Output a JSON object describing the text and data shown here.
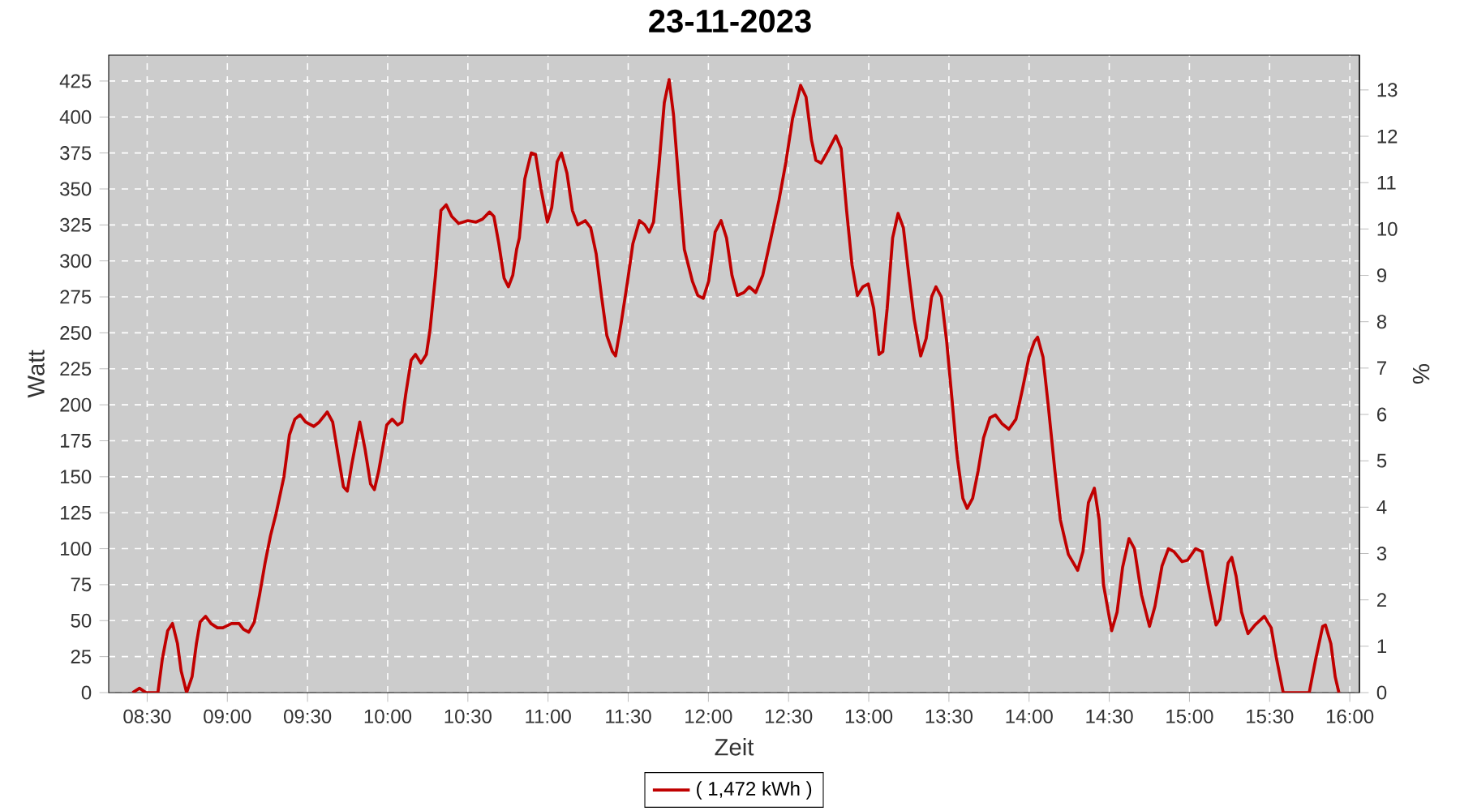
{
  "chart_data": {
    "type": "line",
    "title": "23-11-2023",
    "xlabel": "Zeit",
    "ylabel": "Watt",
    "y2label": "%",
    "xlim": [
      8.26,
      16.06
    ],
    "ylim": [
      0,
      443
    ],
    "y2lim": [
      0,
      13.75
    ],
    "xticks": [
      {
        "value": 8.5,
        "label": "08:30"
      },
      {
        "value": 9.0,
        "label": "09:00"
      },
      {
        "value": 9.5,
        "label": "09:30"
      },
      {
        "value": 10.0,
        "label": "10:00"
      },
      {
        "value": 10.5,
        "label": "10:30"
      },
      {
        "value": 11.0,
        "label": "11:00"
      },
      {
        "value": 11.5,
        "label": "11:30"
      },
      {
        "value": 12.0,
        "label": "12:00"
      },
      {
        "value": 12.5,
        "label": "12:30"
      },
      {
        "value": 13.0,
        "label": "13:00"
      },
      {
        "value": 13.5,
        "label": "13:30"
      },
      {
        "value": 14.0,
        "label": "14:00"
      },
      {
        "value": 14.5,
        "label": "14:30"
      },
      {
        "value": 15.0,
        "label": "15:00"
      },
      {
        "value": 15.5,
        "label": "15:30"
      },
      {
        "value": 16.0,
        "label": "16:00"
      }
    ],
    "yticks": [
      0,
      25,
      50,
      75,
      100,
      125,
      150,
      175,
      200,
      225,
      250,
      275,
      300,
      325,
      350,
      375,
      400,
      425
    ],
    "y2ticks": [
      0,
      1,
      2,
      3,
      4,
      5,
      6,
      7,
      8,
      9,
      10,
      11,
      12,
      13
    ],
    "grid": true,
    "legend": "bottom",
    "marker": "none",
    "line_style": "solid",
    "series": [
      {
        "name": "( 1,472 kWh )",
        "color": "#c00000",
        "x": [
          8.409,
          8.452,
          8.493,
          8.567,
          8.594,
          8.628,
          8.658,
          8.689,
          8.712,
          8.746,
          8.78,
          8.807,
          8.83,
          8.864,
          8.898,
          8.938,
          8.972,
          9.026,
          9.073,
          9.1,
          9.134,
          9.168,
          9.201,
          9.235,
          9.269,
          9.303,
          9.353,
          9.387,
          9.421,
          9.454,
          9.488,
          9.539,
          9.573,
          9.623,
          9.657,
          9.691,
          9.724,
          9.748,
          9.775,
          9.826,
          9.859,
          9.893,
          9.917,
          9.944,
          9.994,
          10.028,
          10.062,
          10.089,
          10.112,
          10.146,
          10.173,
          10.207,
          10.241,
          10.264,
          10.298,
          10.332,
          10.365,
          10.399,
          10.443,
          10.5,
          10.551,
          10.591,
          10.635,
          10.662,
          10.693,
          10.726,
          10.753,
          10.78,
          10.804,
          10.821,
          10.855,
          10.895,
          10.922,
          10.956,
          10.996,
          11.023,
          11.057,
          11.084,
          11.118,
          11.152,
          11.185,
          11.232,
          11.266,
          11.3,
          11.334,
          11.367,
          11.401,
          11.421,
          11.455,
          11.496,
          11.529,
          11.57,
          11.604,
          11.631,
          11.658,
          11.691,
          11.725,
          11.755,
          11.782,
          11.816,
          11.85,
          11.9,
          11.934,
          11.968,
          12.002,
          12.042,
          12.079,
          12.113,
          12.147,
          12.18,
          12.221,
          12.255,
          12.295,
          12.339,
          12.39,
          12.44,
          12.484,
          12.525,
          12.575,
          12.609,
          12.643,
          12.67,
          12.703,
          12.744,
          12.795,
          12.828,
          12.862,
          12.896,
          12.929,
          12.963,
          12.997,
          13.031,
          13.064,
          13.088,
          13.115,
          13.149,
          13.183,
          13.216,
          13.25,
          13.284,
          13.324,
          13.358,
          13.392,
          13.419,
          13.453,
          13.486,
          13.52,
          13.547,
          13.554,
          13.587,
          13.614,
          13.648,
          13.682,
          13.716,
          13.756,
          13.79,
          13.83,
          13.874,
          13.918,
          13.959,
          13.999,
          14.033,
          14.053,
          14.087,
          14.12,
          14.161,
          14.195,
          14.245,
          14.303,
          14.336,
          14.37,
          14.407,
          14.437,
          14.464,
          14.515,
          14.549,
          14.583,
          14.623,
          14.657,
          14.701,
          14.751,
          14.785,
          14.829,
          14.869,
          14.903,
          14.954,
          14.988,
          15.038,
          15.079,
          15.123,
          15.166,
          15.19,
          15.241,
          15.264,
          15.291,
          15.325,
          15.365,
          15.409,
          15.467,
          15.51,
          15.544,
          15.585,
          15.747,
          15.787,
          15.831,
          15.848,
          15.882,
          15.909,
          15.932
        ],
        "values": [
          0,
          3,
          0,
          0,
          23,
          43,
          48,
          34,
          15,
          0,
          11,
          34,
          49,
          53,
          48,
          45,
          45,
          48,
          48,
          44,
          42,
          49,
          68,
          90,
          109,
          124,
          150,
          179,
          190,
          193,
          188,
          185,
          188,
          195,
          188,
          165,
          143,
          140,
          158,
          188,
          169,
          145,
          141,
          154,
          186,
          190,
          186,
          188,
          207,
          231,
          235,
          229,
          235,
          252,
          290,
          335,
          339,
          331,
          326,
          328,
          327,
          329,
          334,
          331,
          312,
          288,
          282,
          290,
          308,
          316,
          357,
          375,
          374,
          350,
          327,
          337,
          369,
          375,
          361,
          335,
          325,
          328,
          323,
          305,
          275,
          248,
          237,
          234,
          256,
          286,
          312,
          328,
          325,
          320,
          327,
          365,
          410,
          426,
          402,
          354,
          308,
          286,
          276,
          274,
          286,
          320,
          328,
          316,
          290,
          276,
          278,
          282,
          278,
          290,
          316,
          342,
          369,
          399,
          422,
          414,
          384,
          370,
          368,
          376,
          387,
          378,
          335,
          297,
          276,
          282,
          284,
          267,
          235,
          237,
          267,
          316,
          333,
          323,
          290,
          259,
          234,
          246,
          275,
          282,
          275,
          244,
          203,
          169,
          162,
          135,
          128,
          135,
          154,
          177,
          191,
          193,
          187,
          183,
          190,
          211,
          233,
          244,
          247,
          233,
          199,
          154,
          120,
          96,
          85,
          98,
          132,
          142,
          120,
          75,
          43,
          56,
          87,
          107,
          100,
          68,
          46,
          60,
          88,
          100,
          98,
          91,
          92,
          100,
          98,
          71,
          47,
          51,
          90,
          94,
          81,
          56,
          41,
          47,
          53,
          45,
          23,
          0,
          0,
          23,
          46,
          47,
          34,
          11,
          0
        ]
      }
    ]
  }
}
